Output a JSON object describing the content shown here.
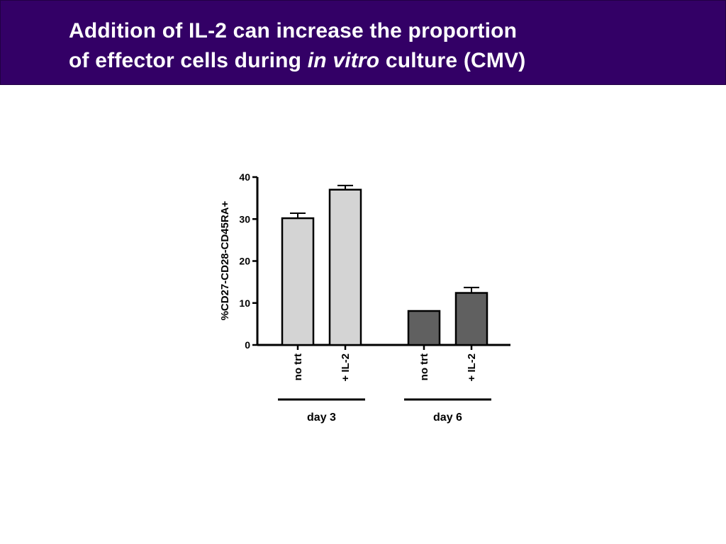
{
  "header": {
    "title_line1": "Addition of IL-2 can increase the proportion",
    "title_line2_pre": "of effector cells during ",
    "title_line2_em": "in vitro",
    "title_line2_post": " culture (CMV)",
    "background_color": "#330066"
  },
  "chart_data": {
    "type": "bar",
    "ylabel": "%CD27-CD28-CD45RA+",
    "ylim": [
      0,
      40
    ],
    "yticks": [
      0,
      10,
      20,
      30,
      40
    ],
    "categories": [
      "no trt",
      "+ IL-2",
      "no trt",
      "+ IL-2"
    ],
    "values": [
      30.2,
      37.0,
      8.1,
      12.4
    ],
    "errors": [
      1.2,
      1.0,
      0.1,
      1.3
    ],
    "bar_colors": [
      "#d4d4d4",
      "#d4d4d4",
      "#606060",
      "#606060"
    ],
    "groups": [
      {
        "label": "day 3",
        "members": [
          0,
          1
        ]
      },
      {
        "label": "day 6",
        "members": [
          2,
          3
        ]
      }
    ],
    "grid": false,
    "legend": "none"
  }
}
